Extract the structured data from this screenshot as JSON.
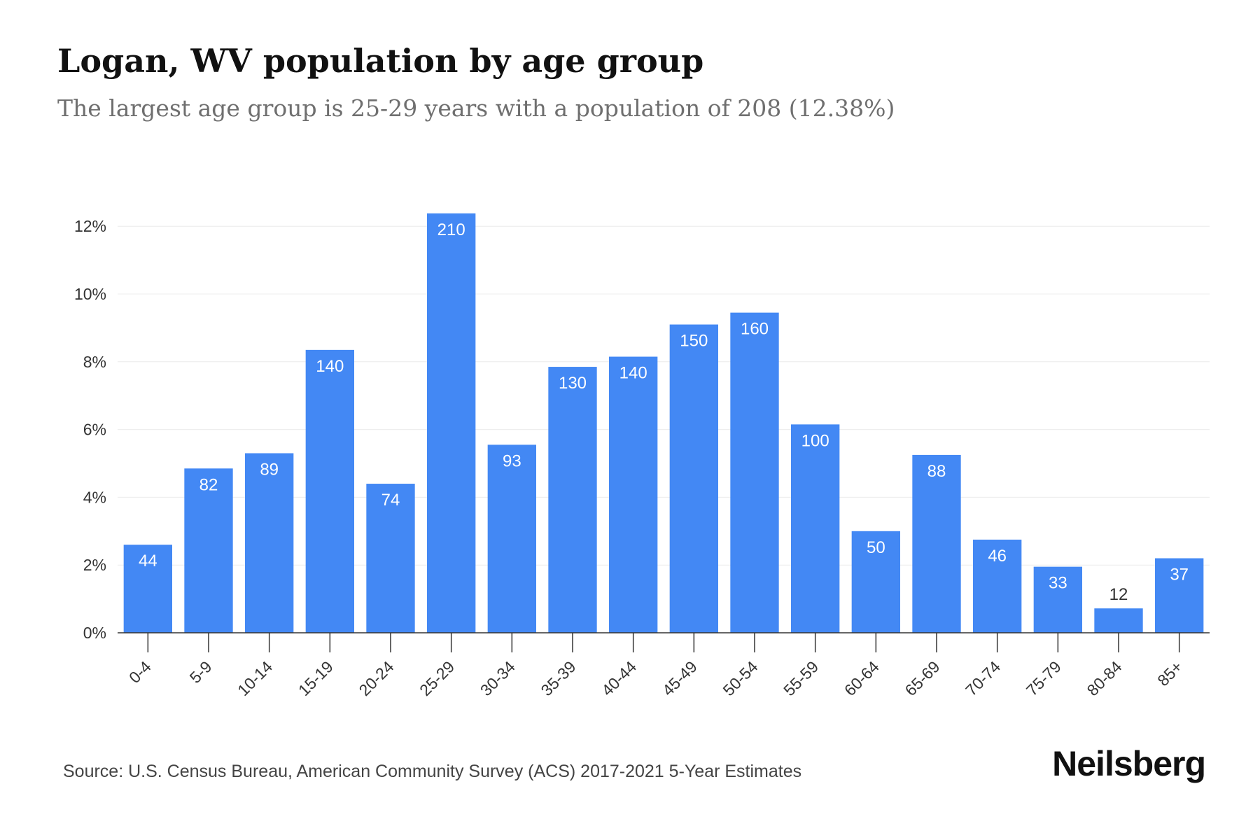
{
  "header": {
    "title": "Logan, WV population by age group",
    "subtitle": "The largest age group is 25-29 years with a population of 208 (12.38%)"
  },
  "footer": {
    "source": "Source: U.S. Census Bureau, American Community Survey (ACS) 2017-2021 5-Year Estimates",
    "brand": "Neilsberg"
  },
  "chart_data": {
    "type": "bar",
    "categories": [
      "0-4",
      "5-9",
      "10-14",
      "15-19",
      "20-24",
      "25-29",
      "30-34",
      "35-39",
      "40-44",
      "45-49",
      "50-54",
      "55-59",
      "60-64",
      "65-69",
      "70-74",
      "75-79",
      "80-84",
      "85+"
    ],
    "values": [
      2.6,
      4.85,
      5.3,
      8.35,
      4.4,
      12.38,
      5.55,
      7.85,
      8.15,
      9.1,
      9.45,
      6.15,
      3.0,
      5.25,
      2.75,
      1.95,
      0.72,
      2.2
    ],
    "data_labels": [
      "44",
      "82",
      "89",
      "140",
      "74",
      "210",
      "93",
      "130",
      "140",
      "150",
      "160",
      "100",
      "50",
      "88",
      "46",
      "33",
      "12",
      "37"
    ],
    "y_ticks": [
      0,
      2,
      4,
      6,
      8,
      10,
      12
    ],
    "y_tick_labels": [
      "0%",
      "2%",
      "4%",
      "6%",
      "8%",
      "10%",
      "12%"
    ],
    "ylim": [
      0,
      12.5
    ],
    "grid": true,
    "xlabel": "",
    "ylabel": "",
    "colors": {
      "bar": "#4388f4",
      "label_on_bar": "#ffffff",
      "label_above": "#333333",
      "grid": "#ececec",
      "axis": "#333333"
    }
  }
}
